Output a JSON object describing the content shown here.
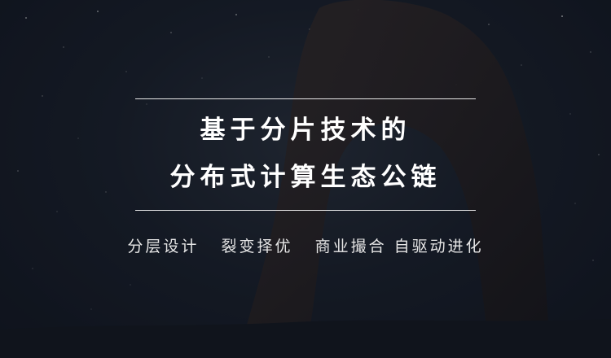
{
  "headline": {
    "line1": "基于分片技术的",
    "line2": "分布式计算生态公链"
  },
  "tagline": "分层设计   裂变择优   商业撮合 自驱动进化",
  "colors": {
    "text": "#ffffff",
    "rule": "#e9e9e9",
    "background": "#151a24"
  }
}
